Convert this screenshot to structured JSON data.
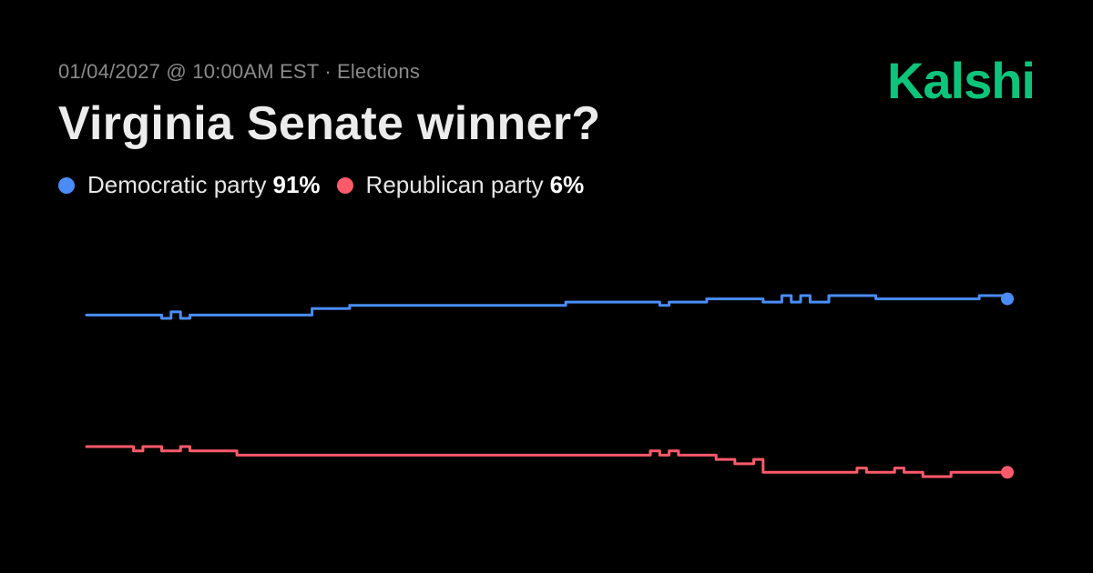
{
  "header": {
    "datetime": "01/04/2027 @ 10:00AM EST",
    "separator": "·",
    "category": "Elections",
    "title": "Virginia Senate winner?",
    "brand": "Kalshi"
  },
  "colors": {
    "democratic": "#4a8df8",
    "republican": "#ff5a6a",
    "brand": "#0dc47b"
  },
  "legend": [
    {
      "label": "Democratic party",
      "value": "91%"
    },
    {
      "label": "Republican party",
      "value": "6%"
    }
  ],
  "chart_data": {
    "type": "line",
    "title": "",
    "xlabel": "",
    "ylabel": "",
    "grid": false,
    "ylim": [
      0,
      100
    ],
    "series": [
      {
        "name": "Democratic party",
        "color": "#4a8df8",
        "values": [
          86,
          86,
          86,
          86,
          86,
          86,
          86,
          86,
          85,
          87,
          85,
          86,
          86,
          86,
          86,
          86,
          86,
          86,
          86,
          86,
          86,
          86,
          86,
          86,
          88,
          88,
          88,
          88,
          89,
          89,
          89,
          89,
          89,
          89,
          89,
          89,
          89,
          89,
          89,
          89,
          89,
          89,
          89,
          89,
          89,
          89,
          89,
          89,
          89,
          89,
          89,
          90,
          90,
          90,
          90,
          90,
          90,
          90,
          90,
          90,
          90,
          89,
          90,
          90,
          90,
          90,
          91,
          91,
          91,
          91,
          91,
          91,
          90,
          90,
          92,
          90,
          92,
          90,
          90,
          92,
          92,
          92,
          92,
          92,
          91,
          91,
          91,
          91,
          91,
          91,
          91,
          91,
          91,
          91,
          91,
          92,
          92,
          92,
          91
        ]
      },
      {
        "name": "Republican party",
        "color": "#ff5a6a",
        "values": [
          12,
          12,
          12,
          12,
          12,
          11,
          12,
          12,
          11,
          11,
          12,
          11,
          11,
          11,
          11,
          11,
          10,
          10,
          10,
          10,
          10,
          10,
          10,
          10,
          10,
          10,
          10,
          10,
          10,
          10,
          10,
          10,
          10,
          10,
          10,
          10,
          10,
          10,
          10,
          10,
          10,
          10,
          10,
          10,
          10,
          10,
          10,
          10,
          10,
          10,
          10,
          10,
          10,
          10,
          10,
          10,
          10,
          10,
          10,
          10,
          11,
          10,
          11,
          10,
          10,
          10,
          10,
          9,
          9,
          8,
          8,
          9,
          6,
          6,
          6,
          6,
          6,
          6,
          6,
          6,
          6,
          6,
          7,
          6,
          6,
          6,
          7,
          6,
          6,
          5,
          5,
          5,
          6,
          6,
          6,
          6,
          6,
          6,
          6
        ]
      }
    ]
  }
}
